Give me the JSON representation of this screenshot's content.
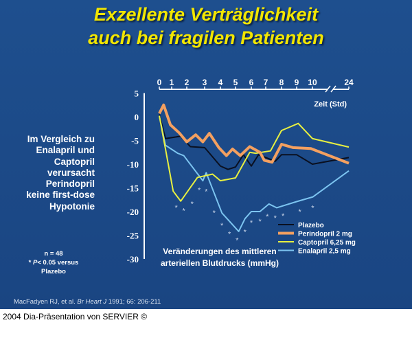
{
  "title_line1": "Exzellente Verträglichkeit",
  "title_line2": "auch bei fragilen Patienten",
  "side_text": [
    "Im Vergleich zu",
    "Enalapril und",
    "Captopril",
    "verursacht",
    "Perindopril",
    "keine first-dose",
    "Hypotonie"
  ],
  "note": {
    "n": "n = 48",
    "p_prefix": "* ",
    "p_italic": "P",
    "p_rest": "< 0.05 versus",
    "p_line2": "Plazebo"
  },
  "citation": {
    "authors": "MacFadyen RJ, et al. ",
    "journal": "Br Heart J",
    "rest": " 1991; 66: 206-211"
  },
  "footer": "2004 Dia-Präsentation von SERVIER ©",
  "colors": {
    "background": "#1c4a88",
    "title": "#f2e600",
    "Plazebo": "#0a1020",
    "Perindopril": "#f4a060",
    "Captopril": "#e8f040",
    "Enalapril": "#7cc4f0"
  },
  "chart_data": {
    "type": "line",
    "xlabel": "Zeit (Std)",
    "ylabel": "Veränderungen des mittleren arteriellen Blutdrucks (mmHg)",
    "ylabel_lines": [
      "Veränderungen des mittleren",
      "arteriellen Blutdrucks (mmHg)"
    ],
    "x_ticks": [
      0,
      1,
      2,
      3,
      4,
      5,
      6,
      7,
      8,
      9,
      10,
      24
    ],
    "x_axis_break": "between 10 and 24",
    "y_ticks": [
      5,
      0,
      -5,
      -10,
      -15,
      -20,
      -25,
      -30
    ],
    "ylim": [
      -30,
      5
    ],
    "xlim": [
      0,
      24
    ],
    "x_axis_position": "top",
    "grid": false,
    "legend_placement": "bottom-right",
    "series": [
      {
        "name": "Plazebo",
        "color": "#0a1020",
        "points": [
          [
            0,
            0.5
          ],
          [
            0.5,
            -4.6
          ],
          [
            1.6,
            -4.1
          ],
          [
            2.2,
            -6.3
          ],
          [
            3,
            -6.5
          ],
          [
            4,
            -10.4
          ],
          [
            4.5,
            -11.1
          ],
          [
            5,
            -10.6
          ],
          [
            5.5,
            -8
          ],
          [
            6,
            -10.4
          ],
          [
            6.5,
            -8
          ],
          [
            7.6,
            -9.4
          ],
          [
            8,
            -8
          ],
          [
            9,
            -8
          ],
          [
            10,
            -10
          ],
          [
            24,
            -8.6
          ]
        ]
      },
      {
        "name": "Perindopril 2 mg",
        "color": "#f4a060",
        "points": [
          [
            0,
            0.7
          ],
          [
            0.35,
            2.5
          ],
          [
            0.9,
            -1.7
          ],
          [
            1.5,
            -3.4
          ],
          [
            2,
            -5.3
          ],
          [
            2.5,
            -3.8
          ],
          [
            2.9,
            -5.3
          ],
          [
            3.3,
            -3.5
          ],
          [
            3.9,
            -6.5
          ],
          [
            4.4,
            -8.2
          ],
          [
            4.8,
            -6.8
          ],
          [
            5.3,
            -8.2
          ],
          [
            5.9,
            -6.3
          ],
          [
            6.6,
            -7.5
          ],
          [
            6.9,
            -9.2
          ],
          [
            7.4,
            -9.6
          ],
          [
            8,
            -5.8
          ],
          [
            8.75,
            -6.5
          ],
          [
            9.9,
            -6.7
          ],
          [
            24,
            -9.8
          ]
        ]
      },
      {
        "name": "Captopril  6,25 mg",
        "color": "#e8f040",
        "points": [
          [
            0,
            0.2
          ],
          [
            0.5,
            -6.8
          ],
          [
            1.1,
            -15.7
          ],
          [
            1.6,
            -17.8
          ],
          [
            2.6,
            -12.8
          ],
          [
            3.5,
            -12.1
          ],
          [
            4,
            -13.5
          ],
          [
            5,
            -12.9
          ],
          [
            5.9,
            -7.5
          ],
          [
            6.3,
            -7.7
          ],
          [
            7.3,
            -7.2
          ],
          [
            8,
            -2.9
          ],
          [
            9.1,
            -1.4
          ],
          [
            10,
            -4.6
          ],
          [
            24,
            -6.4
          ]
        ]
      },
      {
        "name": "Enalapril 2,5 mg",
        "color": "#7cc4f0",
        "points": [
          [
            0,
            0.2
          ],
          [
            0.5,
            -6
          ],
          [
            1.4,
            -7.7
          ],
          [
            1.8,
            -8.2
          ],
          [
            2.9,
            -13.5
          ],
          [
            3.1,
            -11.8
          ],
          [
            4.1,
            -20.3
          ],
          [
            5.2,
            -24.2
          ],
          [
            5.6,
            -21.5
          ],
          [
            6,
            -20
          ],
          [
            6.6,
            -20
          ],
          [
            7.2,
            -18.4
          ],
          [
            7.7,
            -19.2
          ],
          [
            9,
            -17.9
          ],
          [
            10.2,
            -16.9
          ],
          [
            24,
            -11.4
          ]
        ]
      }
    ],
    "significance_marker": "*",
    "significance_points": [
      [
        1.3,
        -19.1
      ],
      [
        1.8,
        -19.8
      ],
      [
        2.3,
        -18.3
      ],
      [
        2.7,
        -15.4
      ],
      [
        3.1,
        -15.7
      ],
      [
        3.6,
        -20.2
      ],
      [
        4.1,
        -22.9
      ],
      [
        4.6,
        -24.7
      ],
      [
        5.1,
        -26
      ],
      [
        5.6,
        -24.3
      ],
      [
        6,
        -22.3
      ],
      [
        6.6,
        -22
      ],
      [
        7.1,
        -21
      ],
      [
        7.6,
        -21.3
      ],
      [
        8.1,
        -20.9
      ],
      [
        9.2,
        -20
      ],
      [
        10.1,
        -19.2
      ]
    ]
  }
}
